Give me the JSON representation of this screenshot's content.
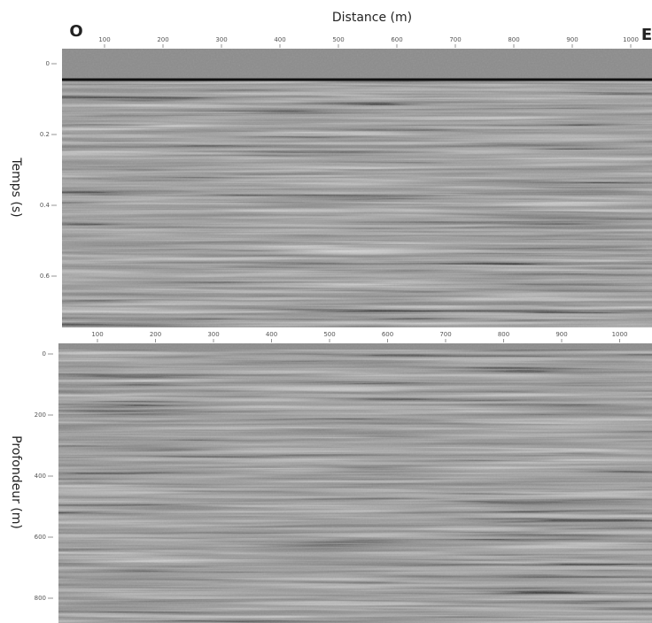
{
  "header": {
    "title": "Distance (m)",
    "left_label": "O",
    "right_label": "E"
  },
  "panels": [
    {
      "y_label": "Temps (s)",
      "x_ticks": [
        "100",
        "200",
        "300",
        "400",
        "500",
        "600",
        "700",
        "800",
        "900",
        "1000"
      ],
      "y_ticks": [
        "0",
        "0.2",
        "0.4",
        "0.6"
      ]
    },
    {
      "y_label": "Profondeur (m)",
      "x_ticks": [
        "100",
        "200",
        "300",
        "400",
        "500",
        "600",
        "700",
        "800",
        "900",
        "1000"
      ],
      "y_ticks": [
        "0",
        "200",
        "400",
        "600",
        "800"
      ]
    }
  ]
}
